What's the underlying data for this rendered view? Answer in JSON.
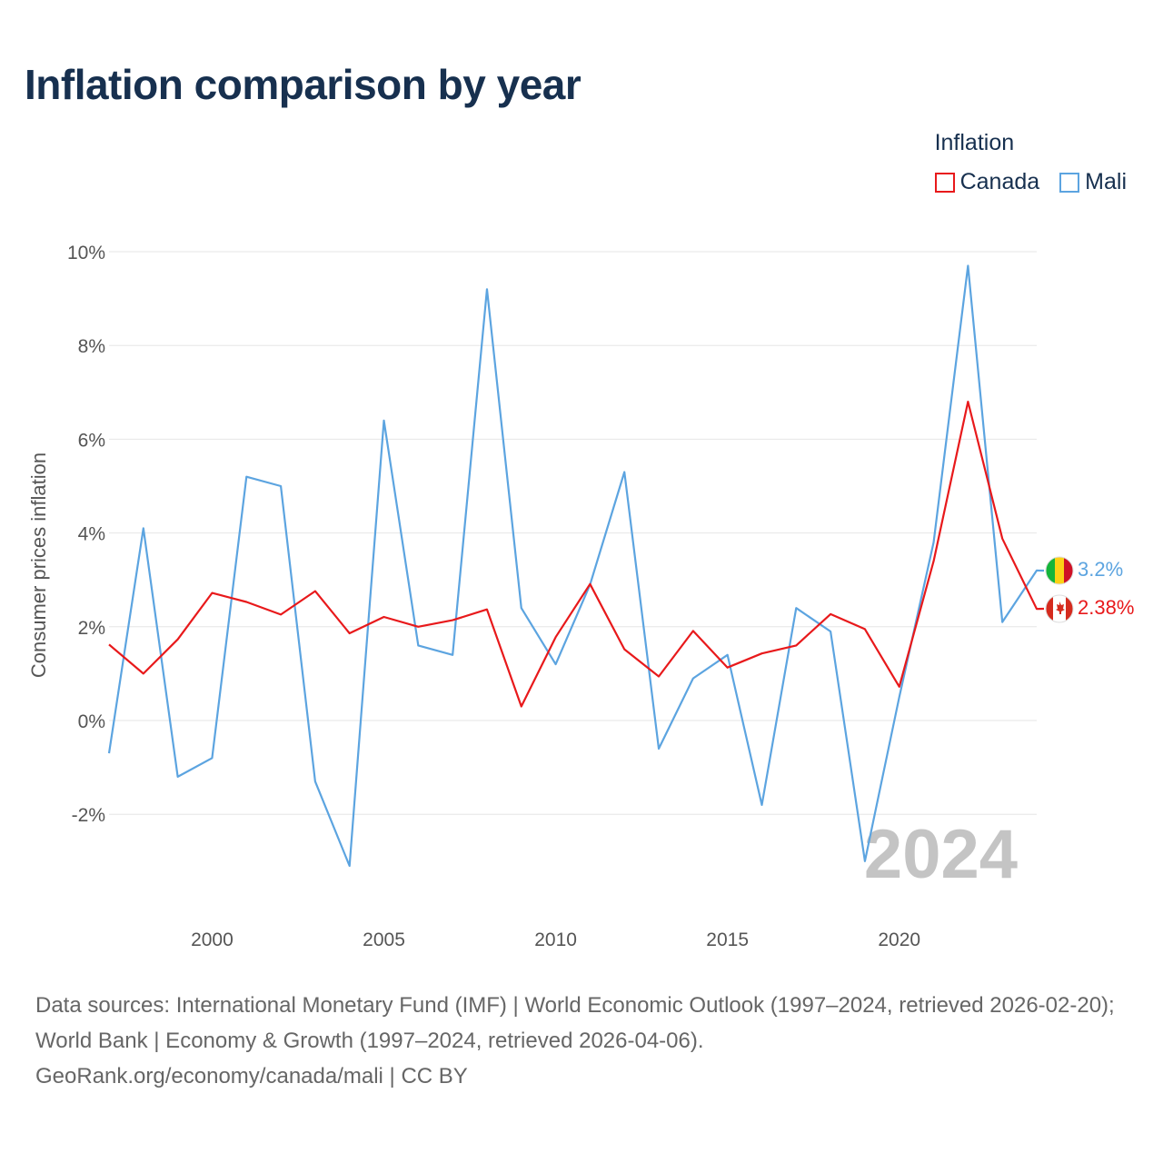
{
  "title": "Inflation comparison by year",
  "legend": {
    "title": "Inflation",
    "items": [
      {
        "label": "Canada",
        "color": "#e8191b"
      },
      {
        "label": "Mali",
        "color": "#5ca4e0"
      }
    ]
  },
  "chart_data": {
    "type": "line",
    "title": "Inflation comparison by year",
    "xlabel": "",
    "ylabel": "Consumer prices inflation",
    "x": [
      1997,
      1998,
      1999,
      2000,
      2001,
      2002,
      2003,
      2004,
      2005,
      2006,
      2007,
      2008,
      2009,
      2010,
      2011,
      2012,
      2013,
      2014,
      2015,
      2016,
      2017,
      2018,
      2019,
      2020,
      2021,
      2022,
      2023,
      2024
    ],
    "xlim": [
      1997,
      2024
    ],
    "ylim": [
      -4,
      10
    ],
    "x_ticks": [
      2000,
      2005,
      2010,
      2015,
      2020
    ],
    "x_tick_labels": [
      "2000",
      "2005",
      "2010",
      "2015",
      "2020"
    ],
    "y_ticks": [
      -2,
      0,
      2,
      4,
      6,
      8,
      10
    ],
    "y_tick_labels": [
      "-2%",
      "0%",
      "2%",
      "4%",
      "6%",
      "8%",
      "10%"
    ],
    "grid": true,
    "series": [
      {
        "name": "Canada",
        "color": "#e8191b",
        "values": [
          1.62,
          1.0,
          1.73,
          2.72,
          2.53,
          2.26,
          2.76,
          1.86,
          2.21,
          2.0,
          2.14,
          2.37,
          0.3,
          1.78,
          2.91,
          1.52,
          0.94,
          1.91,
          1.13,
          1.43,
          1.6,
          2.27,
          1.95,
          0.72,
          3.4,
          6.8,
          3.88,
          2.38
        ],
        "end_label": "2.38%"
      },
      {
        "name": "Mali",
        "color": "#5ca4e0",
        "values": [
          -0.7,
          4.1,
          -1.2,
          -0.8,
          5.2,
          5.0,
          -1.3,
          -3.1,
          6.4,
          1.6,
          1.4,
          9.2,
          2.4,
          1.2,
          2.9,
          5.3,
          -0.6,
          0.9,
          1.4,
          -1.8,
          2.4,
          1.9,
          -3.0,
          0.5,
          3.8,
          9.7,
          2.1,
          3.2
        ],
        "end_label": "3.2%"
      }
    ],
    "annotation": "2024"
  },
  "footer": {
    "sources": "Data sources: International Monetary Fund (IMF) | World Economic Outlook (1997–2024, retrieved 2026-02-20); World Bank | Economy & Growth (1997–2024, retrieved 2026-04-06).",
    "credit": "GeoRank.org/economy/canada/mali | CC BY"
  }
}
